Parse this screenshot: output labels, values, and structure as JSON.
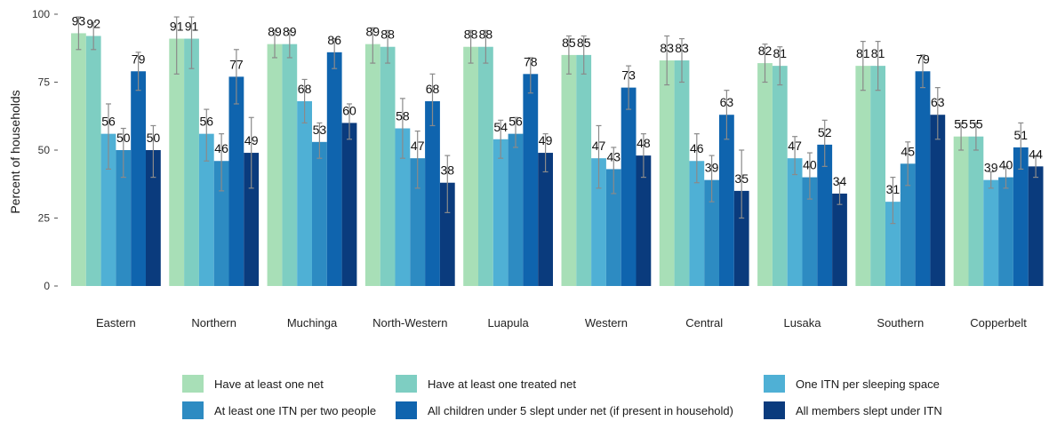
{
  "chart_data": {
    "type": "bar",
    "ylabel": "Percent of households",
    "ylim": [
      0,
      100
    ],
    "yticks": [
      "0",
      "25",
      "50",
      "75",
      "100"
    ],
    "grid": false,
    "legend_position": "bottom",
    "categories": [
      "Eastern",
      "Northern",
      "Muchinga",
      "North-Western",
      "Luapula",
      "Western",
      "Central",
      "Lusaka",
      "Southern",
      "Copperbelt"
    ],
    "series": [
      {
        "name": "Have at least one net",
        "color": "#a8dfb7",
        "values": [
          93,
          91,
          89,
          89,
          88,
          85,
          83,
          82,
          81,
          55
        ],
        "error": [
          [
            87,
            99
          ],
          [
            78,
            99
          ],
          [
            84,
            94
          ],
          [
            82,
            95
          ],
          [
            82,
            94
          ],
          [
            78,
            92
          ],
          [
            74,
            92
          ],
          [
            75,
            89
          ],
          [
            72,
            90
          ],
          [
            50,
            60
          ]
        ]
      },
      {
        "name": "Have at least one treated net",
        "color": "#7ecec2",
        "values": [
          92,
          91,
          89,
          88,
          88,
          85,
          83,
          81,
          81,
          55
        ],
        "error": [
          [
            87,
            97
          ],
          [
            80,
            99
          ],
          [
            84,
            94
          ],
          [
            82,
            94
          ],
          [
            82,
            94
          ],
          [
            78,
            92
          ],
          [
            75,
            91
          ],
          [
            74,
            88
          ],
          [
            72,
            90
          ],
          [
            50,
            60
          ]
        ]
      },
      {
        "name": "One ITN per sleeping space",
        "color": "#4fb0d5",
        "values": [
          56,
          56,
          68,
          58,
          54,
          47,
          46,
          47,
          31,
          39
        ],
        "error": [
          [
            43,
            67
          ],
          [
            46,
            65
          ],
          [
            60,
            76
          ],
          [
            47,
            69
          ],
          [
            47,
            61
          ],
          [
            36,
            59
          ],
          [
            38,
            56
          ],
          [
            41,
            55
          ],
          [
            23,
            40
          ],
          [
            36,
            42
          ]
        ]
      },
      {
        "name": "At least one ITN per two people",
        "color": "#2d8bc2",
        "values": [
          50,
          46,
          53,
          47,
          56,
          43,
          39,
          40,
          45,
          40
        ],
        "error": [
          [
            40,
            58
          ],
          [
            35,
            56
          ],
          [
            47,
            60
          ],
          [
            36,
            57
          ],
          [
            51,
            62
          ],
          [
            34,
            51
          ],
          [
            31,
            48
          ],
          [
            32,
            49
          ],
          [
            37,
            53
          ],
          [
            36,
            44
          ]
        ]
      },
      {
        "name": "All children under 5 slept under net (if present in household)",
        "color": "#0f64ae",
        "values": [
          79,
          77,
          86,
          68,
          78,
          73,
          63,
          52,
          79,
          51
        ],
        "error": [
          [
            72,
            86
          ],
          [
            67,
            87
          ],
          [
            80,
            91
          ],
          [
            59,
            78
          ],
          [
            71,
            84
          ],
          [
            65,
            81
          ],
          [
            54,
            72
          ],
          [
            44,
            61
          ],
          [
            73,
            85
          ],
          [
            43,
            60
          ]
        ]
      },
      {
        "name": "All members slept under ITN",
        "color": "#0a3b7d",
        "values": [
          50,
          49,
          60,
          38,
          49,
          48,
          35,
          34,
          63,
          44
        ],
        "error": [
          [
            40,
            59
          ],
          [
            36,
            62
          ],
          [
            54,
            67
          ],
          [
            27,
            48
          ],
          [
            42,
            56
          ],
          [
            40,
            56
          ],
          [
            25,
            50
          ],
          [
            30,
            38
          ],
          [
            54,
            73
          ],
          [
            40,
            48
          ]
        ]
      }
    ]
  }
}
